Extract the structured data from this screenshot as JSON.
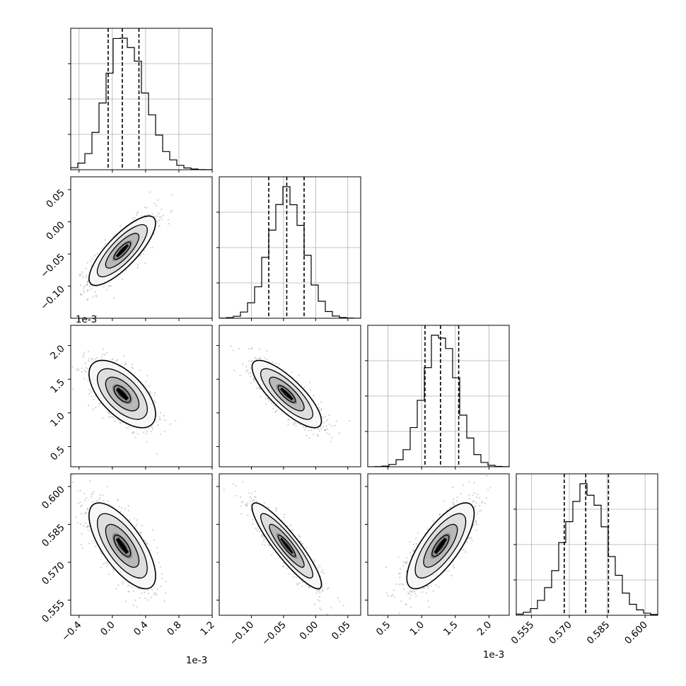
{
  "chart_data": {
    "type": "corner",
    "grid": true,
    "parameters": [
      {
        "range": [
          -0.0005,
          0.0012
        ],
        "ticks": [
          -0.0004,
          0.0,
          0.0004,
          0.0008,
          0.0012
        ],
        "tick_labels": [
          "−0.4",
          "0.0",
          "0.4",
          "0.8",
          "1.2"
        ],
        "offset_label": "1e-3",
        "mean": 0.00012,
        "sd": 0.0002,
        "quantiles": [
          -5e-05,
          0.00012,
          0.00032
        ],
        "hist_peak": [
          5e-05,
          0.0001,
          0.00015
        ]
      },
      {
        "range": [
          -0.15,
          0.07
        ],
        "ticks": [
          -0.1,
          -0.05,
          0.0,
          0.05
        ],
        "tick_labels": [
          "−0.10",
          "−0.05",
          "0.00",
          "0.05"
        ],
        "offset_label": "",
        "mean": -0.045,
        "sd": 0.027,
        "quantiles": [
          -0.073,
          -0.045,
          -0.018
        ],
        "hist_peak": [
          -0.05,
          -0.045,
          -0.04
        ]
      },
      {
        "range": [
          0.0002,
          0.0023
        ],
        "ticks": [
          0.0005,
          0.001,
          0.0015,
          0.002
        ],
        "tick_labels": [
          "0.5",
          "1.0",
          "1.5",
          "2.0"
        ],
        "offset_label": "1e-3",
        "mean": 0.00128,
        "sd": 0.00025,
        "quantiles": [
          0.00105,
          0.00128,
          0.00155
        ],
        "hist_peak": [
          0.0012,
          0.00125,
          0.0013
        ]
      },
      {
        "range": [
          0.549,
          0.605
        ],
        "ticks": [
          0.555,
          0.57,
          0.585,
          0.6
        ],
        "tick_labels": [
          "0.555",
          "0.570",
          "0.585",
          "0.600"
        ],
        "offset_label": "",
        "mean": 0.5765,
        "sd": 0.0085,
        "quantiles": [
          0.568,
          0.5765,
          0.5855
        ],
        "hist_peak": [
          0.575,
          0.577,
          0.579
        ]
      }
    ],
    "correlations": [
      [
        1,
        0.8,
        -0.6,
        -0.7
      ],
      [
        0.8,
        1,
        -0.8,
        -0.9
      ],
      [
        -0.6,
        -0.8,
        1,
        0.75
      ],
      [
        -0.7,
        -0.9,
        0.75,
        1
      ]
    ],
    "contour_levels_sigma": [
      0.5,
      1.0,
      1.5,
      2.0
    ]
  }
}
